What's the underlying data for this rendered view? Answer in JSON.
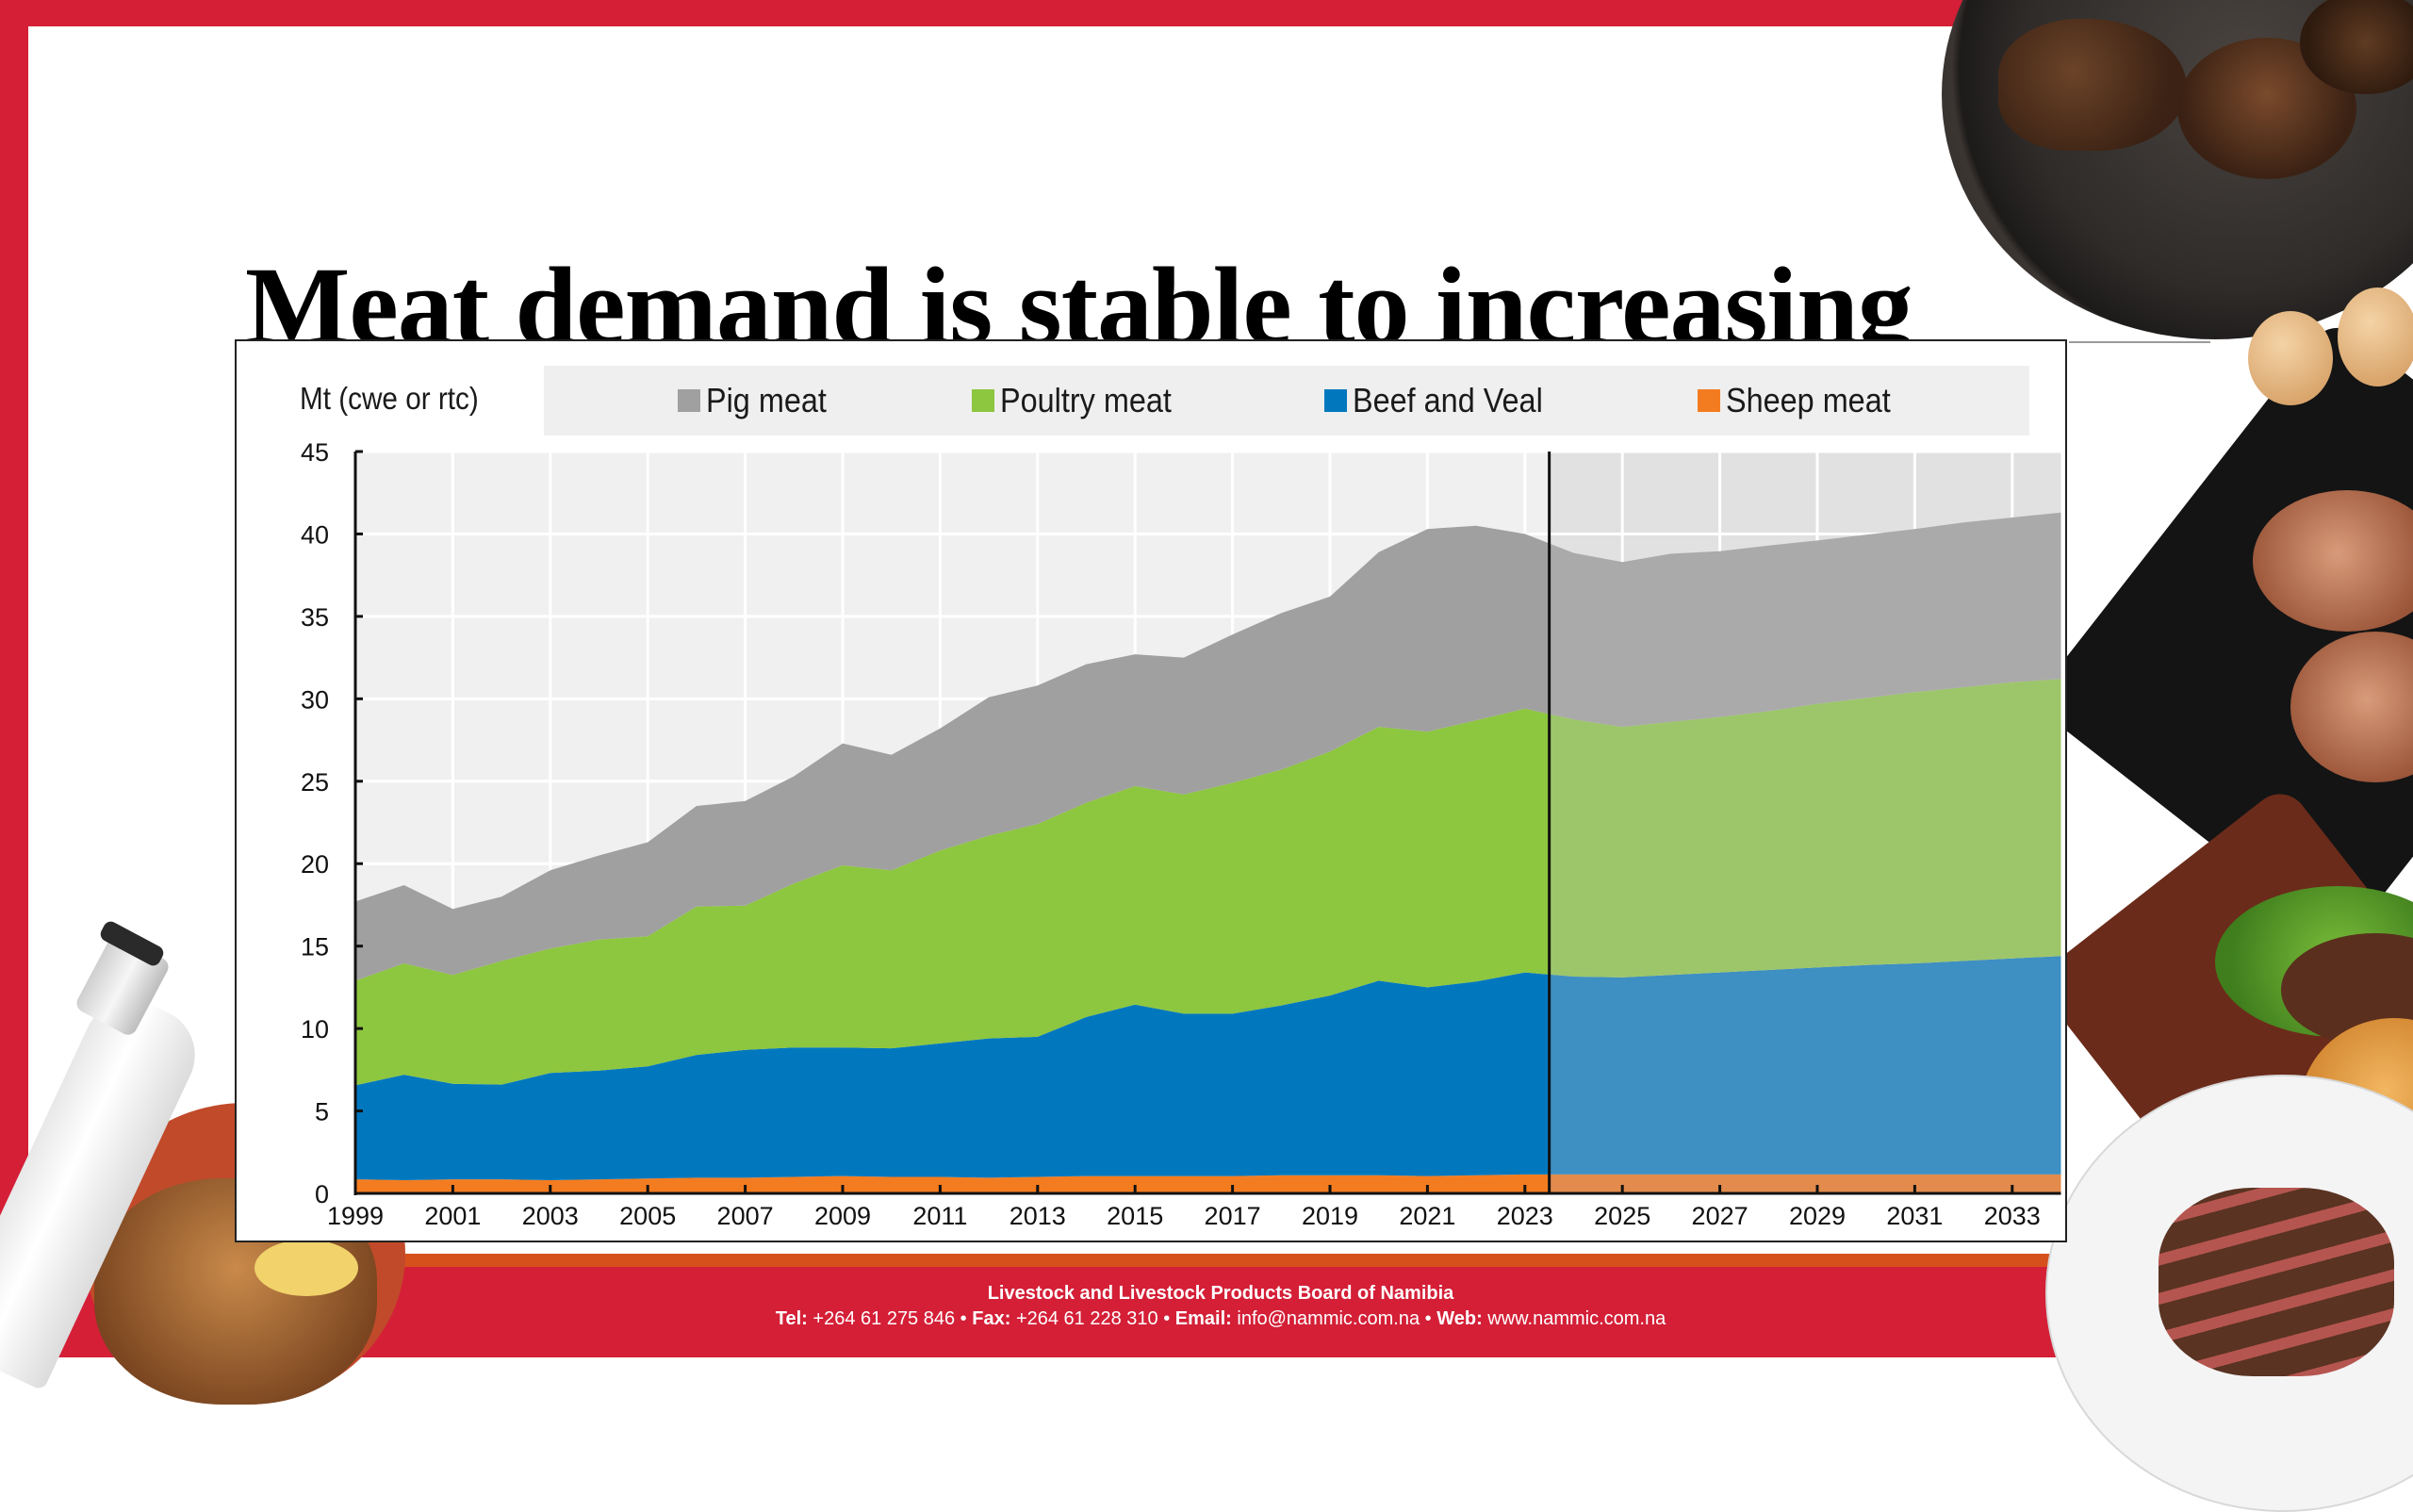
{
  "slide": {
    "title": "Meat demand is stable to increasing",
    "footer": {
      "organization": "Livestock and Livestock Products Board of Namibia",
      "tel_label": "Tel:",
      "tel": "+264 61 275 846",
      "fax_label": "Fax:",
      "fax": "+264 61 228 310",
      "email_label": "Email:",
      "email": "info@nammic.com.na",
      "web_label": "Web:",
      "web": "www.nammic.com.na",
      "separator": "•"
    },
    "colors": {
      "brand_red": "#d41f37",
      "accent_orange": "#d6501c"
    }
  },
  "chart_data": {
    "type": "area",
    "stacked": true,
    "title": "",
    "ylabel": "Mt (cwe or rtc)",
    "xlabel": "",
    "ylim": [
      0,
      45
    ],
    "yticks": [
      0,
      5,
      10,
      15,
      20,
      25,
      30,
      35,
      40,
      45
    ],
    "xlim": [
      1999,
      2034
    ],
    "xticks": [
      1999,
      2001,
      2003,
      2005,
      2007,
      2009,
      2011,
      2013,
      2015,
      2017,
      2019,
      2021,
      2023,
      2025,
      2027,
      2029,
      2031,
      2033
    ],
    "grid": true,
    "legend_position": "top",
    "projection_start": 2023.5,
    "projection_note": "shaded lighter region after vertical line = projections",
    "x": [
      1999,
      2000,
      2001,
      2002,
      2003,
      2004,
      2005,
      2006,
      2007,
      2008,
      2009,
      2010,
      2011,
      2012,
      2013,
      2014,
      2015,
      2016,
      2017,
      2018,
      2019,
      2020,
      2021,
      2022,
      2023,
      2024,
      2025,
      2026,
      2027,
      2028,
      2029,
      2030,
      2031,
      2032,
      2033,
      2034
    ],
    "series": [
      {
        "name": "Sheep meat",
        "color": "#f47c20",
        "projection_color": "#e28b4c",
        "values": [
          0.85,
          0.8,
          0.85,
          0.85,
          0.8,
          0.85,
          0.9,
          0.95,
          0.95,
          1.0,
          1.05,
          1.0,
          1.0,
          0.95,
          1.0,
          1.05,
          1.05,
          1.05,
          1.05,
          1.1,
          1.1,
          1.1,
          1.05,
          1.1,
          1.15,
          1.15,
          1.15,
          1.15,
          1.15,
          1.15,
          1.15,
          1.15,
          1.15,
          1.15,
          1.15,
          1.15
        ]
      },
      {
        "name": "Beef and Veal",
        "color": "#0178be",
        "projection_color": "#3e8fc2",
        "values": [
          5.7,
          6.4,
          5.8,
          5.75,
          6.5,
          6.6,
          6.8,
          7.45,
          7.75,
          7.85,
          7.8,
          7.8,
          8.1,
          8.45,
          8.5,
          9.65,
          10.4,
          9.85,
          9.85,
          10.3,
          10.9,
          11.8,
          11.45,
          11.75,
          12.25,
          12.0,
          11.95,
          12.1,
          12.25,
          12.4,
          12.55,
          12.7,
          12.8,
          12.95,
          13.1,
          13.25
        ]
      },
      {
        "name": "Poultry meat",
        "color": "#8dc63f",
        "projection_color": "#9dc66a",
        "values": [
          6.35,
          6.75,
          6.6,
          7.5,
          7.55,
          7.95,
          7.9,
          9.0,
          8.75,
          9.95,
          11.05,
          10.8,
          11.7,
          12.3,
          12.9,
          13.0,
          13.25,
          13.3,
          14.0,
          14.3,
          14.8,
          15.4,
          15.5,
          15.85,
          16.0,
          15.6,
          15.2,
          15.35,
          15.5,
          15.7,
          16.0,
          16.2,
          16.45,
          16.6,
          16.75,
          16.8
        ]
      },
      {
        "name": "Pig meat",
        "color": "#a0a0a0",
        "projection_color": "#aaaaaa",
        "values": [
          4.8,
          4.75,
          4.0,
          3.9,
          4.75,
          5.1,
          5.7,
          6.1,
          6.35,
          6.5,
          7.4,
          7.0,
          7.4,
          8.4,
          8.4,
          8.4,
          8.0,
          8.3,
          9.0,
          9.5,
          9.4,
          10.6,
          12.3,
          11.8,
          10.6,
          10.1,
          10.0,
          10.2,
          10.05,
          10.05,
          9.9,
          9.9,
          9.9,
          10.0,
          10.0,
          10.1
        ]
      }
    ],
    "legend": [
      "Pig meat",
      "Poultry meat",
      "Beef and Veal",
      "Sheep meat"
    ]
  }
}
